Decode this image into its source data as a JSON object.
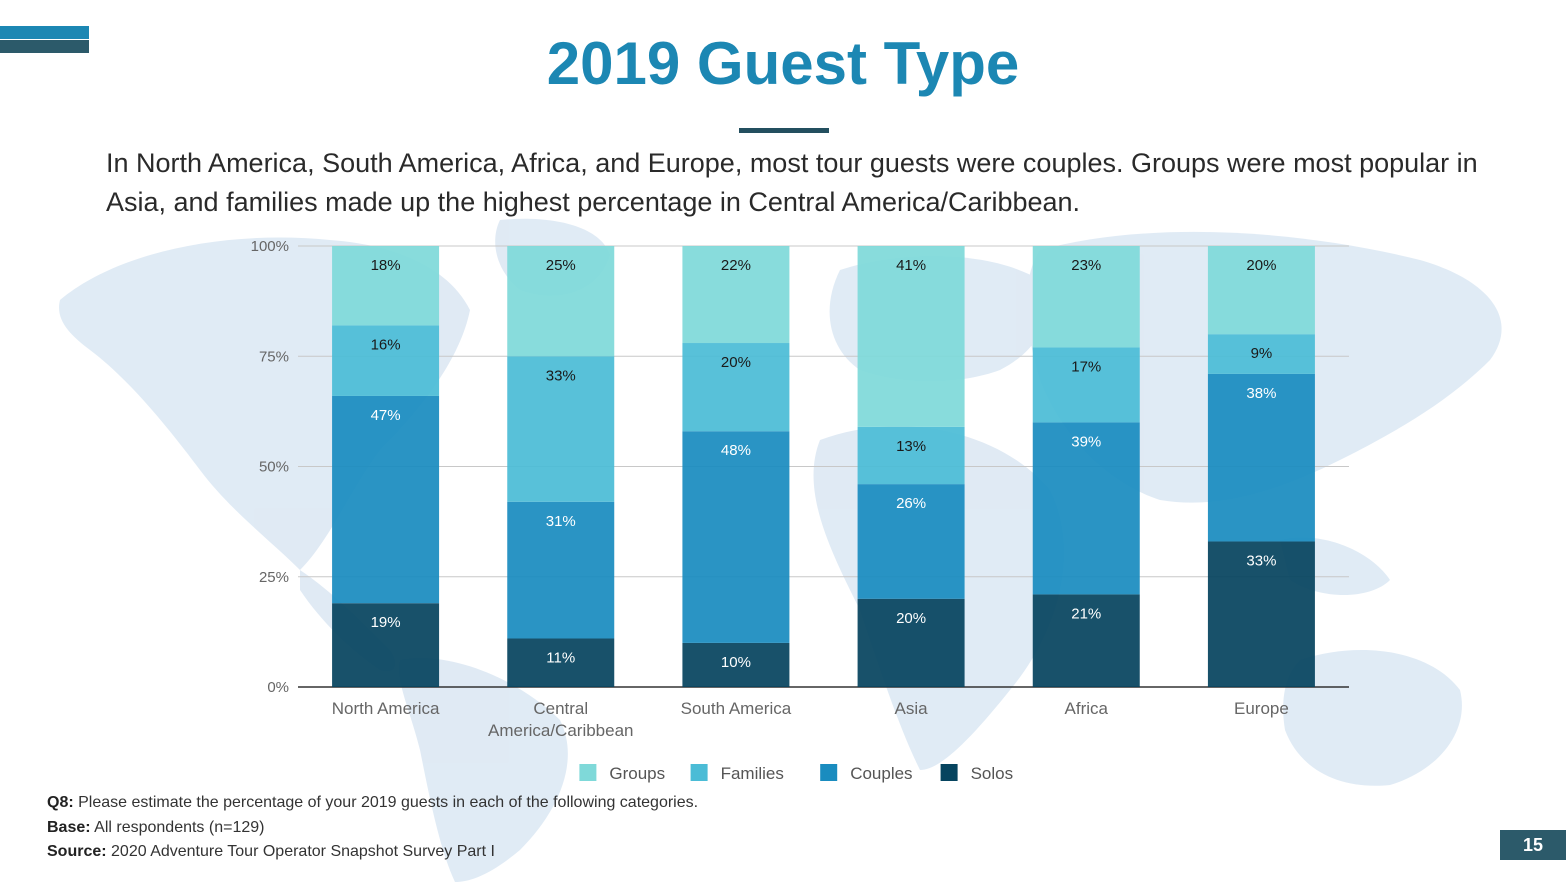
{
  "slide": {
    "title": "2019 Guest Type",
    "subtitle": "In North America, South America, Africa, and Europe, most tour guests were couples. Groups were most popular in Asia, and families made up the highest percentage in Central America/Caribbean.",
    "page_number": "15"
  },
  "footnotes": {
    "q_label": "Q8:",
    "q_text": "Please estimate the percentage of your 2019 guests in each of the following categories.",
    "base_label": "Base:",
    "base_text": "All respondents (n=129)",
    "source_label": "Source:",
    "source_text": "2020 Adventure Tour Operator Snapshot Survey Part I"
  },
  "colors": {
    "title": "#1c87b3",
    "accent_dark": "#2c5a6a",
    "Groups": "#7fd9d9",
    "Families": "#4bbcd6",
    "Couples": "#1a8cbf",
    "Solos": "#06445f"
  },
  "chart_data": {
    "type": "bar",
    "stacked": true,
    "categories": [
      "North America",
      "Central America/Caribbean",
      "South America",
      "Asia",
      "Africa",
      "Europe"
    ],
    "category_lines": [
      [
        "North America"
      ],
      [
        "Central",
        "America/Caribbean"
      ],
      [
        "South America"
      ],
      [
        "Asia"
      ],
      [
        "Africa"
      ],
      [
        "Europe"
      ]
    ],
    "series": [
      {
        "name": "Solos",
        "values": [
          19,
          11,
          10,
          20,
          21,
          33
        ]
      },
      {
        "name": "Couples",
        "values": [
          47,
          31,
          48,
          26,
          39,
          38
        ]
      },
      {
        "name": "Families",
        "values": [
          16,
          33,
          20,
          13,
          17,
          9
        ]
      },
      {
        "name": "Groups",
        "values": [
          18,
          25,
          22,
          41,
          23,
          20
        ]
      }
    ],
    "legend_order": [
      "Groups",
      "Families",
      "Couples",
      "Solos"
    ],
    "y_ticks": [
      "0%",
      "25%",
      "50%",
      "75%",
      "100%"
    ],
    "ylim": [
      0,
      100
    ],
    "grid": true,
    "legend_position": "bottom"
  }
}
